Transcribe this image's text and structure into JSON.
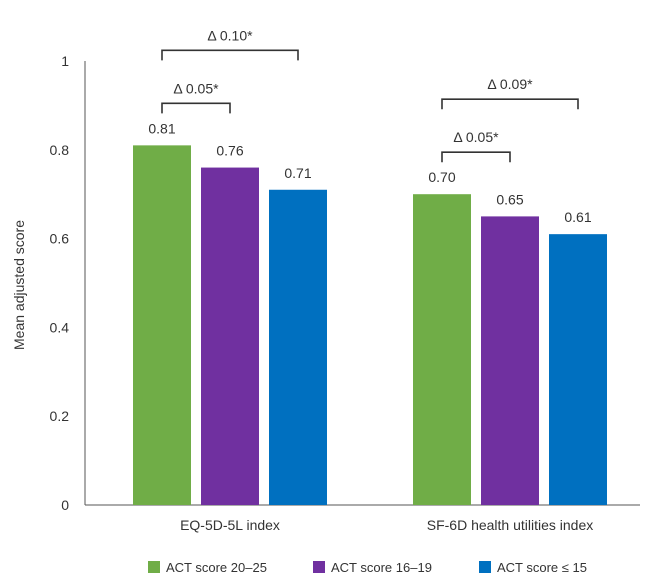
{
  "chart_data": {
    "type": "bar",
    "title": "",
    "xlabel": "",
    "ylabel": "Mean adjusted score",
    "ylim": [
      0,
      1
    ],
    "yticks": [
      0,
      0.2,
      0.4,
      0.6,
      0.8,
      1
    ],
    "ytick_labels": [
      "0",
      "0.2",
      "0.4",
      "0.6",
      "0.8",
      "1"
    ],
    "grid": false,
    "legend_position": "bottom",
    "categories": [
      "EQ-5D-5L index",
      "SF-6D health utilities index"
    ],
    "series": [
      {
        "name": "ACT score  20–25",
        "color": "#70ad47",
        "values": [
          0.81,
          0.7
        ],
        "labels": [
          "0.81",
          "0.70"
        ]
      },
      {
        "name": "ACT score 16–19",
        "color": "#7030a0",
        "values": [
          0.76,
          0.65
        ],
        "labels": [
          "0.76",
          "0.65"
        ]
      },
      {
        "name": "ACT score ≤ 15",
        "color": "#0070c0",
        "values": [
          0.71,
          0.61
        ],
        "labels": [
          "0.71",
          "0.61"
        ]
      }
    ],
    "comparisons": [
      {
        "category": 0,
        "from_series": 0,
        "to_series": 2,
        "label": "Δ 0.10*"
      },
      {
        "category": 0,
        "from_series": 0,
        "to_series": 1,
        "label": "Δ 0.05*"
      },
      {
        "category": 1,
        "from_series": 0,
        "to_series": 2,
        "label": "Δ 0.09*"
      },
      {
        "category": 1,
        "from_series": 0,
        "to_series": 1,
        "label": "Δ 0.05*"
      }
    ]
  }
}
